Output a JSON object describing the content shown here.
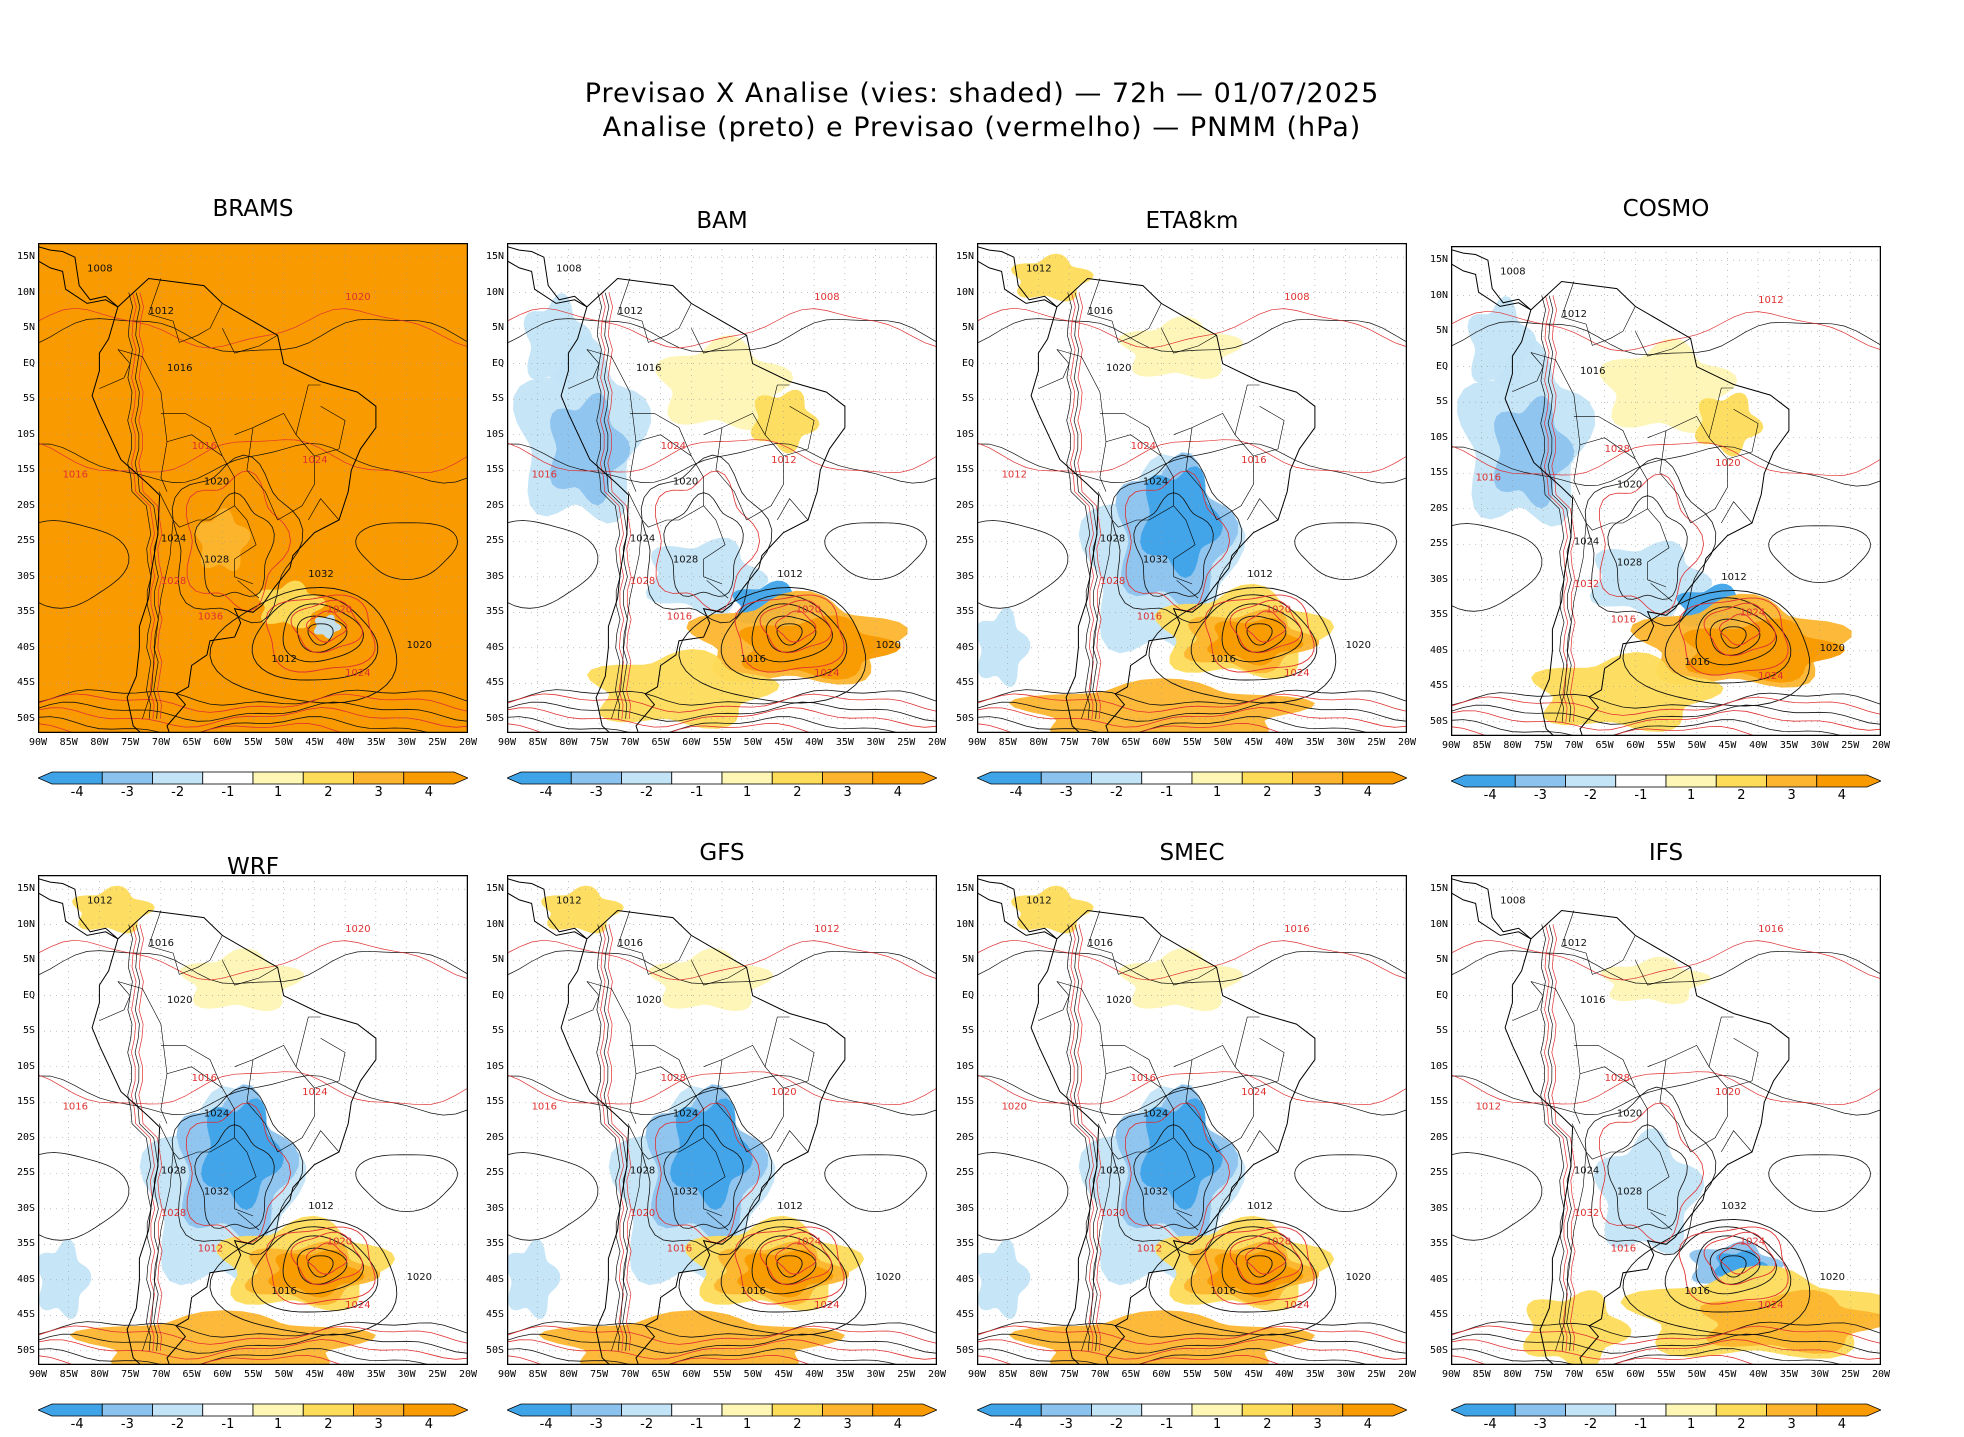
{
  "title_line1": "Previsao X Analise (vies: shaded) — 72h — 01/07/2025",
  "title_line2": "Analise (preto) e Previsao (vermelho) — PNMM (hPa)",
  "lat_labels": [
    "15N",
    "10N",
    "5N",
    "EQ",
    "5S",
    "10S",
    "15S",
    "20S",
    "25S",
    "30S",
    "35S",
    "40S",
    "45S",
    "50S"
  ],
  "lon_labels": [
    "90W",
    "85W",
    "80W",
    "75W",
    "70W",
    "65W",
    "60W",
    "55W",
    "50W",
    "45W",
    "40W",
    "35W",
    "30W",
    "25W",
    "20W"
  ],
  "colorbar": {
    "labels": [
      "-4",
      "-3",
      "-2",
      "-1",
      "1",
      "2",
      "3",
      "4"
    ],
    "colors": [
      "#3fa3e8",
      "#8cc3ee",
      "#c3e4f7",
      "#ffffff",
      "#fef6b5",
      "#fddc5a",
      "#fdb52f",
      "#f99a00"
    ]
  },
  "panels": [
    {
      "name": "BRAMS",
      "mode": "warm",
      "labels_black": [
        "1008",
        "1012",
        "1016",
        "1020",
        "1024",
        "1028",
        "1032",
        "1012",
        "1020"
      ],
      "labels_red": [
        "1020",
        "1016",
        "1024",
        "1020",
        "1016",
        "1028",
        "1036",
        "1024"
      ]
    },
    {
      "name": "BAM",
      "mode": "mixed",
      "labels_black": [
        "1008",
        "1012",
        "1016",
        "1020",
        "1024",
        "1028",
        "1012",
        "1016",
        "1020"
      ],
      "labels_red": [
        "1008",
        "1016",
        "1012",
        "1020",
        "1024",
        "1028",
        "1016",
        "1024"
      ]
    },
    {
      "name": "ETA8km",
      "mode": "cold",
      "labels_black": [
        "1012",
        "1016",
        "1020",
        "1024",
        "1028",
        "1032",
        "1012",
        "1016",
        "1020"
      ],
      "labels_red": [
        "1008",
        "1012",
        "1016",
        "1020",
        "1024",
        "1028",
        "1016",
        "1024"
      ]
    },
    {
      "name": "COSMO",
      "mode": "mixed",
      "labels_black": [
        "1008",
        "1012",
        "1016",
        "1020",
        "1024",
        "1028",
        "1012",
        "1016",
        "1020"
      ],
      "labels_red": [
        "1012",
        "1016",
        "1020",
        "1024",
        "1028",
        "1032",
        "1016",
        "1024"
      ]
    },
    {
      "name": "WRF",
      "mode": "cold",
      "labels_black": [
        "1012",
        "1016",
        "1020",
        "1024",
        "1028",
        "1032",
        "1012",
        "1016",
        "1020"
      ],
      "labels_red": [
        "1020",
        "1016",
        "1024",
        "1020",
        "1016",
        "1028",
        "1012",
        "1024"
      ]
    },
    {
      "name": "GFS",
      "mode": "cold",
      "labels_black": [
        "1012",
        "1016",
        "1020",
        "1024",
        "1028",
        "1032",
        "1012",
        "1016",
        "1020"
      ],
      "labels_red": [
        "1012",
        "1016",
        "1020",
        "1024",
        "1028",
        "1020",
        "1016",
        "1024"
      ]
    },
    {
      "name": "SMEC",
      "mode": "cold",
      "labels_black": [
        "1012",
        "1016",
        "1020",
        "1024",
        "1028",
        "1032",
        "1012",
        "1016",
        "1020"
      ],
      "labels_red": [
        "1016",
        "1020",
        "1024",
        "1028",
        "1016",
        "1020",
        "1012",
        "1024"
      ]
    },
    {
      "name": "IFS",
      "mode": "bluelow",
      "labels_black": [
        "1008",
        "1012",
        "1016",
        "1020",
        "1024",
        "1028",
        "1032",
        "1016",
        "1020"
      ],
      "labels_red": [
        "1016",
        "1012",
        "1020",
        "1024",
        "1028",
        "1032",
        "1016",
        "1024"
      ]
    }
  ]
}
